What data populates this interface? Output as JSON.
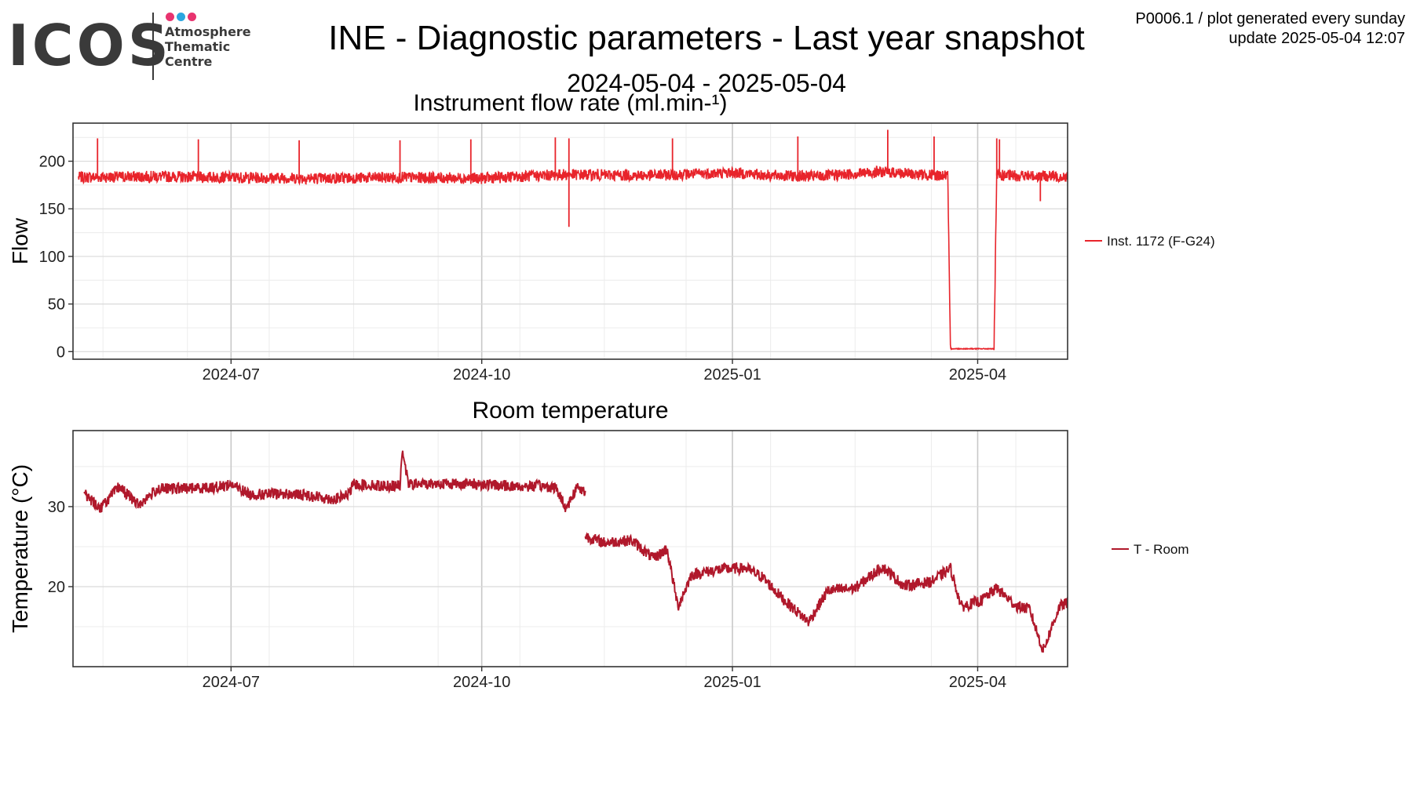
{
  "logo": {
    "text": "ICOS",
    "lines": [
      "Atmosphere",
      "Thematic",
      "Centre"
    ],
    "dot_colors": [
      "#e8336f",
      "#2aa6e0",
      "#e8336f"
    ]
  },
  "header": {
    "title": "INE - Diagnostic parameters - Last year snapshot",
    "date_range": "2024-05-04 - 2025-05-04",
    "meta_line1": "P0006.1 / plot generated every sunday",
    "meta_line2": "update  2025-05-04 12:07"
  },
  "chart_data": [
    {
      "type": "line",
      "title": "Instrument flow rate (ml.min-¹)",
      "xlabel": "",
      "ylabel": "Flow",
      "xlim": [
        "2024-05-04",
        "2025-05-04"
      ],
      "ylim": [
        -8,
        240
      ],
      "yticks": [
        0,
        50,
        100,
        150,
        200
      ],
      "xticks": [
        "2024-07-01",
        "2024-10-01",
        "2025-01-01",
        "2025-04-01"
      ],
      "xtick_labels": [
        "2024-07",
        "2024-10",
        "2025-01",
        "2025-04"
      ],
      "grid": true,
      "legend": "right",
      "color": "#e8242b",
      "series": [
        {
          "name": "Inst. 1172 (F-G24)",
          "base_points": [
            [
              "2024-05-04",
              183
            ],
            [
              "2024-06-01",
              184
            ],
            [
              "2024-07-01",
              183
            ],
            [
              "2024-08-01",
              182
            ],
            [
              "2024-09-01",
              183
            ],
            [
              "2024-10-01",
              182
            ],
            [
              "2024-10-15",
              184
            ],
            [
              "2024-11-01",
              186
            ],
            [
              "2024-12-01",
              185
            ],
            [
              "2025-01-01",
              188
            ],
            [
              "2025-01-15",
              185
            ],
            [
              "2025-02-01",
              184
            ],
            [
              "2025-02-25",
              189
            ],
            [
              "2025-03-10",
              186
            ],
            [
              "2025-03-21",
              185
            ],
            [
              "2025-03-22",
              3
            ],
            [
              "2025-04-07",
              3
            ],
            [
              "2025-04-08",
              185
            ],
            [
              "2025-05-04",
              184
            ]
          ],
          "spikes": [
            [
              "2024-05-13",
              224
            ],
            [
              "2024-06-19",
              223
            ],
            [
              "2024-07-26",
              222
            ],
            [
              "2024-09-01",
              222
            ],
            [
              "2024-09-27",
              223
            ],
            [
              "2024-10-28",
              225
            ],
            [
              "2024-11-02",
              224
            ],
            [
              "2024-11-02",
              131
            ],
            [
              "2024-12-10",
              224
            ],
            [
              "2025-01-25",
              226
            ],
            [
              "2025-02-27",
              233
            ],
            [
              "2025-03-16",
              226
            ],
            [
              "2025-04-08",
              224
            ],
            [
              "2025-04-09",
              223
            ],
            [
              "2025-04-24",
              158
            ]
          ]
        }
      ]
    },
    {
      "type": "line",
      "title": "Room temperature",
      "xlabel": "",
      "ylabel": "Temperature (°C)",
      "xlim": [
        "2024-05-04",
        "2025-05-04"
      ],
      "ylim": [
        10,
        39.5
      ],
      "yticks": [
        20,
        30
      ],
      "xticks": [
        "2024-07-01",
        "2024-10-01",
        "2025-01-01",
        "2025-04-01"
      ],
      "xtick_labels": [
        "2024-07",
        "2024-10",
        "2025-01",
        "2025-04"
      ],
      "grid": true,
      "legend": "right",
      "color": "#b0182b",
      "series": [
        {
          "name": "T - Room",
          "segments": [
            [
              [
                "2024-05-08",
                31.7
              ],
              [
                "2024-05-14",
                29.8
              ],
              [
                "2024-05-21",
                32.5
              ],
              [
                "2024-05-28",
                30.2
              ],
              [
                "2024-06-04",
                32.2
              ],
              [
                "2024-06-15",
                32.3
              ],
              [
                "2024-06-25",
                32.4
              ],
              [
                "2024-07-01",
                32.8
              ],
              [
                "2024-07-08",
                31.5
              ],
              [
                "2024-07-20",
                31.6
              ],
              [
                "2024-07-30",
                31.4
              ],
              [
                "2024-08-08",
                30.9
              ],
              [
                "2024-08-13",
                31.5
              ],
              [
                "2024-08-15",
                32.8
              ],
              [
                "2024-08-25",
                32.6
              ],
              [
                "2024-09-01",
                32.6
              ],
              [
                "2024-09-02",
                37.2
              ],
              [
                "2024-09-04",
                32.8
              ],
              [
                "2024-09-20",
                32.9
              ],
              [
                "2024-10-01",
                32.8
              ],
              [
                "2024-10-15",
                32.5
              ],
              [
                "2024-10-22",
                32.6
              ],
              [
                "2024-10-28",
                32.4
              ],
              [
                "2024-11-01",
                29.8
              ],
              [
                "2024-11-05",
                32.5
              ],
              [
                "2024-11-08",
                31.8
              ]
            ],
            [
              [
                "2024-11-08",
                26.3
              ],
              [
                "2024-11-15",
                25.5
              ],
              [
                "2024-11-25",
                25.8
              ],
              [
                "2024-12-03",
                23.5
              ],
              [
                "2024-12-08",
                24.7
              ],
              [
                "2024-12-12",
                17.5
              ],
              [
                "2024-12-17",
                21.5
              ],
              [
                "2024-12-28",
                22.2
              ],
              [
                "2025-01-06",
                22.3
              ],
              [
                "2025-01-12",
                21.2
              ],
              [
                "2025-01-20",
                18.3
              ],
              [
                "2025-01-29",
                15.6
              ],
              [
                "2025-02-05",
                19.5
              ],
              [
                "2025-02-15",
                19.8
              ],
              [
                "2025-02-25",
                22.5
              ],
              [
                "2025-03-05",
                20.1
              ],
              [
                "2025-03-15",
                20.6
              ],
              [
                "2025-03-22",
                22.3
              ],
              [
                "2025-03-26",
                17.5
              ],
              [
                "2025-04-02",
                18.2
              ],
              [
                "2025-04-08",
                19.8
              ],
              [
                "2025-04-15",
                17.6
              ],
              [
                "2025-04-20",
                17.2
              ],
              [
                "2025-04-25",
                12.0
              ],
              [
                "2025-05-01",
                17.5
              ],
              [
                "2025-05-04",
                18.0
              ]
            ]
          ]
        }
      ]
    }
  ]
}
